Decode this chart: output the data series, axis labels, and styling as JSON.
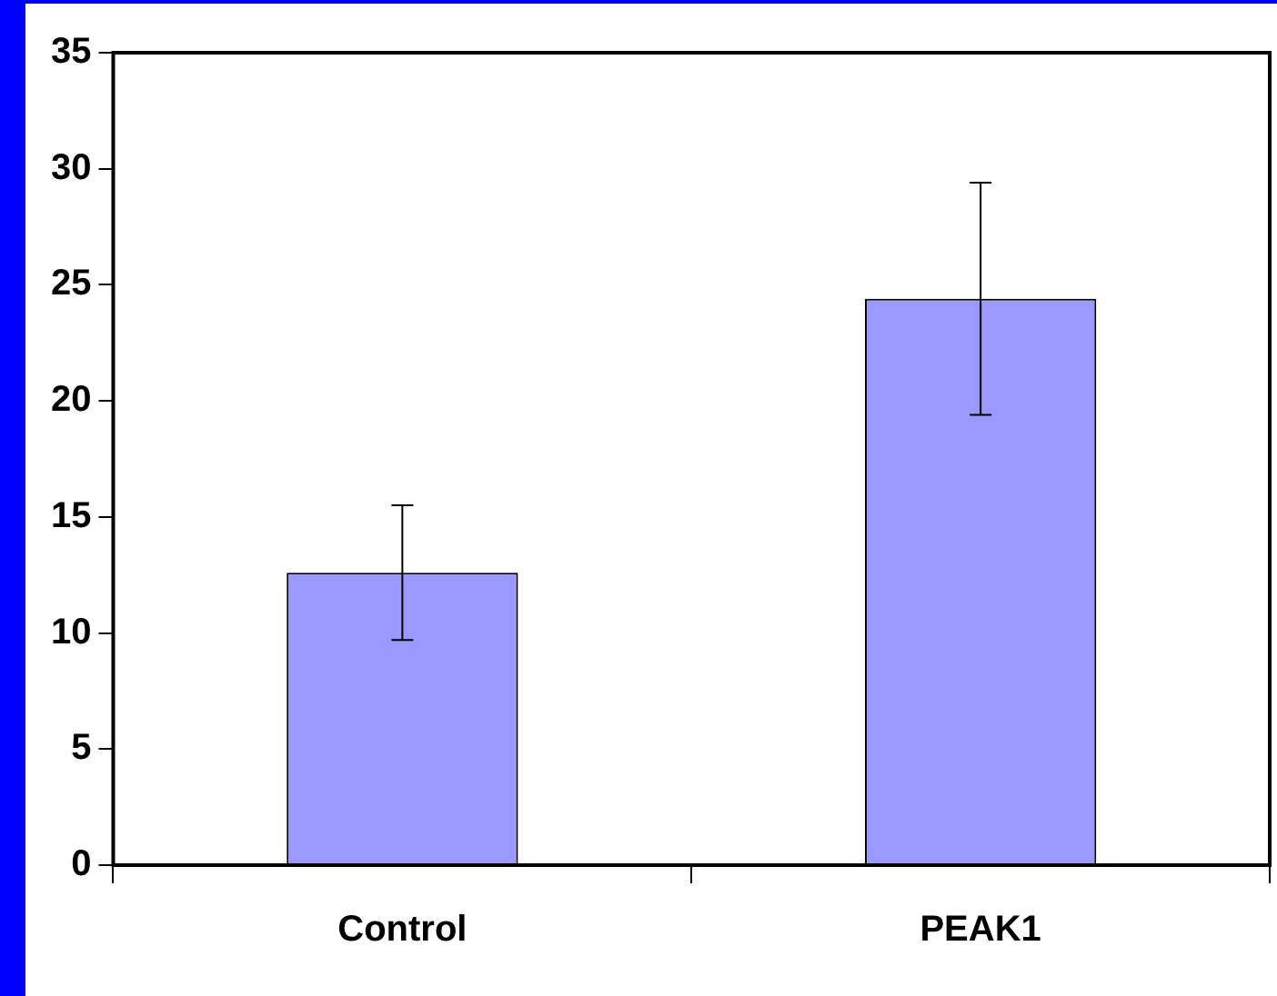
{
  "chart_data": {
    "type": "bar",
    "categories": [
      "Control",
      "PEAK1"
    ],
    "series": [
      {
        "color": "#9999ff",
        "values": [
          12.6,
          24.4
        ],
        "errors": [
          2.9,
          5.0
        ]
      }
    ],
    "ylim": [
      0,
      35
    ],
    "yticks": [
      0,
      5,
      10,
      15,
      20,
      25,
      30,
      35
    ],
    "grid": false,
    "legend": false
  }
}
